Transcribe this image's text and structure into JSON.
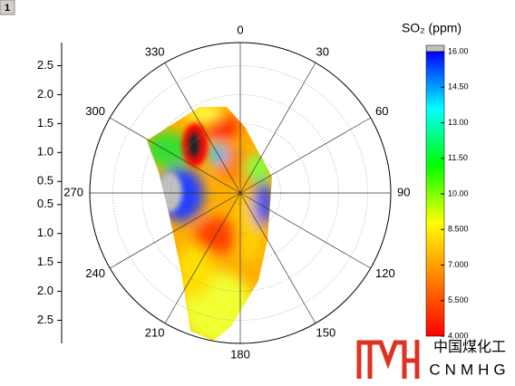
{
  "page_label": "1",
  "chart_data": {
    "type": "polar-contour",
    "theta_zero": "top",
    "theta_direction": "clockwise",
    "theta_ticks": [
      0,
      30,
      60,
      90,
      120,
      150,
      180,
      210,
      240,
      270,
      300,
      330
    ],
    "rlim": [
      0.3,
      2.9
    ],
    "rticks": [
      0.5,
      {
        "value": 1,
        "label": "1.0"
      },
      1.5,
      {
        "value": 2,
        "label": "2.0"
      },
      2.5
    ],
    "grid": true,
    "colorbar": {
      "title": "SO₂ (ppm)",
      "lim": [
        4,
        16
      ],
      "ticks": [
        {
          "value": 16,
          "label": "16.00"
        },
        {
          "value": 14.5,
          "label": "14.50"
        },
        {
          "value": 13,
          "label": "13.00"
        },
        {
          "value": 11.5,
          "label": "11.50"
        },
        {
          "value": 10,
          "label": "10.00"
        },
        {
          "value": 8.5,
          "label": "8.500"
        },
        {
          "value": 7,
          "label": "7.000"
        },
        {
          "value": 5.5,
          "label": "5.500"
        },
        {
          "value": 4,
          "label": "4.000"
        }
      ],
      "colormap": [
        "#ff0000",
        "#ff8000",
        "#ffff00",
        "#00ff00",
        "#00ffff",
        "#0000ff"
      ],
      "over_color": "#c0c0c0"
    }
  },
  "watermark": {
    "text": "中国煤化工",
    "latin": "CNMHG"
  }
}
